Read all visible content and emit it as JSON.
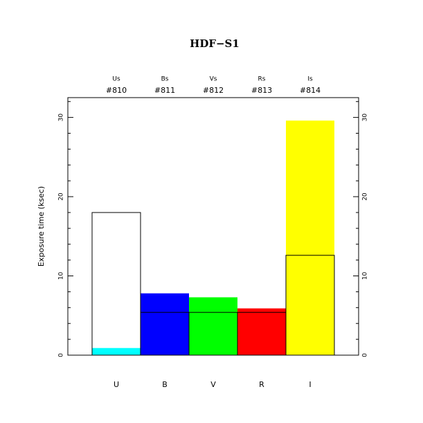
{
  "chart_data": {
    "type": "bar",
    "title": "HDF−S1",
    "y_label": "Exposure time (ksec)",
    "categories": [
      "U",
      "B",
      "V",
      "R",
      "I"
    ],
    "bands": [
      "Us",
      "Bs",
      "Vs",
      "Rs",
      "Is"
    ],
    "filters": [
      "#810",
      "#811",
      "#812",
      "#813",
      "#814"
    ],
    "series": [
      {
        "colors": [
          "#00ffff",
          "#0000ff",
          "#00ff00",
          "#ff0000",
          "#ffff00"
        ],
        "values": [
          0.9,
          7.8,
          7.3,
          5.9,
          29.6
        ]
      },
      {
        "color": "#000000",
        "outline": true,
        "values": [
          18.0,
          5.4,
          5.4,
          5.4,
          12.6
        ]
      }
    ],
    "ylim": [
      0,
      32.5
    ],
    "yticks": [
      0,
      10,
      20,
      30
    ],
    "yminorticks": [
      2,
      4,
      6,
      8,
      12,
      14,
      16,
      18,
      22,
      24,
      26,
      28,
      32
    ]
  }
}
